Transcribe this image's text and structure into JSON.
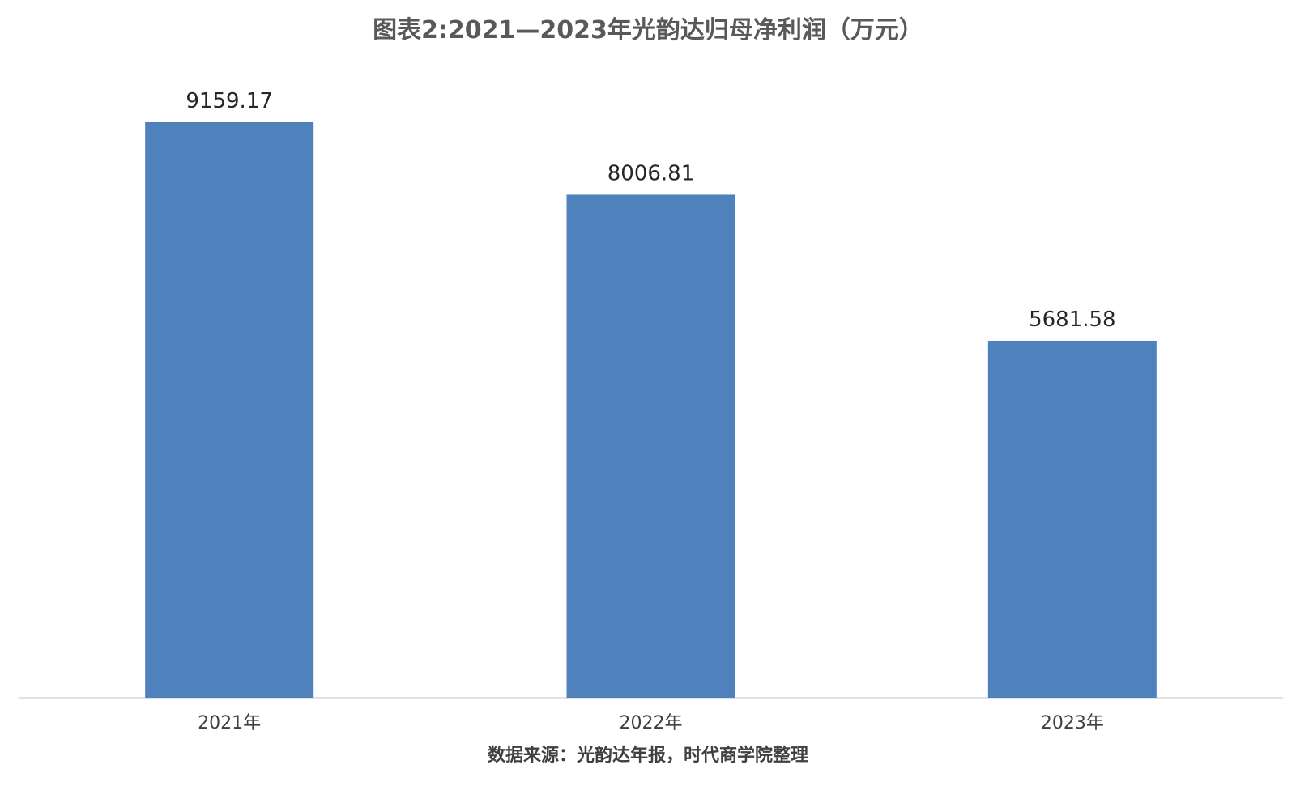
{
  "chart_data": {
    "type": "bar",
    "title": "图表2:2021—2023年光韵达归母净利润（万元）",
    "categories": [
      "2021年",
      "2022年",
      "2023年"
    ],
    "values": [
      9159.17,
      8006.81,
      5681.58
    ],
    "value_labels": [
      "9159.17",
      "8006.81",
      "5681.58"
    ],
    "xlabel": "",
    "ylabel": "",
    "ylim": [
      0,
      10000
    ],
    "grid": false,
    "legend": "none",
    "bar_color": "#4F81BD",
    "source": "数据来源：光韵达年报，时代商学院整理"
  }
}
